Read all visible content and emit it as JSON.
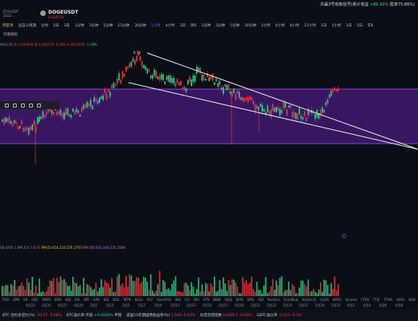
{
  "topbar": {
    "status_text": "共赢3号有新信号(累计收益",
    "gain": "+86.42%",
    "win_rate": "胜率75.86%)"
  },
  "symbol": {
    "small1": "ETHUSDT",
    "small2": "2022...",
    "name": "DOGEUSDT",
    "price": "0.424176",
    "toolbar_left1": "完匠单",
    "toolbar_left2": "设自义周期"
  },
  "timeframes": [
    "分时",
    "1日",
    "3日",
    "1分钟",
    "3分钟",
    "5分钟",
    "15分钟",
    "30分钟",
    "1小时",
    "4小时",
    "1日",
    "周K",
    "1分钟",
    "3分钟",
    "5分钟",
    "30分钟",
    "2小时",
    "6小时",
    "8小时",
    "12小时",
    "1日",
    "3小时",
    "3日",
    "5日",
    "年K"
  ],
  "tabs": [
    "均值指标"
  ],
  "ohlc": {
    "line1a": "4H1139",
    "line1b": "开 0.420008",
    "line1c": "收 0.424176",
    "line1d": "-0.28% 0.0012059",
    "line1e": "-1.18%"
  },
  "price_label": "0.74",
  "ma": {
    "a": "58.4264",
    "b": "1.8M 314.7.8.47",
    "c": "MA(5):414,233,576.2703",
    "d": "MA(10):503,344,532.3584"
  },
  "indicators": [
    "TRIX",
    "DMI",
    "VR",
    "OBV",
    "MWO",
    "EMA",
    "KDJ",
    "RSI",
    "WR",
    "SAR",
    "KDJ",
    "BOC",
    "MTM",
    "BULL",
    "PSY",
    "StochRSI",
    "SMI",
    "CCI",
    "MFI",
    "ATR",
    "BBW",
    "SKDJ",
    "BIAS",
    "DPO",
    "ADI",
    "Position",
    "Fundflow",
    "2[Vert.0]",
    "LGUR",
    "BARS",
    "Volume",
    "FTBS",
    "TTSI",
    "TTMA",
    "AVOL",
    "NUR",
    "AVO"
  ],
  "xaxis": [
    "4月23",
    "4月25",
    "4月27",
    "4月29",
    "5月1",
    "5月3",
    "5月5",
    "5月7",
    "5月9",
    "5月11",
    "5月13",
    "5月15",
    "5月17",
    "5月19",
    "5月21",
    "5月23",
    "5月25",
    "5月27",
    "5月29",
    "5月31",
    "6月2",
    "6月4",
    "6月6",
    "6月8"
  ],
  "bottombar": [
    {
      "label": "BTC 合约多空比(%)",
      "v1": "-42.47",
      "v2": "-0.68%",
      "v1_color": "r",
      "v2_color": "r"
    },
    {
      "label": "BTC溢价率-币安",
      "v1": "+0.0026%",
      "v2": "平稳",
      "v1_color": "g",
      "v2_color": ""
    },
    {
      "label": "美国10年期国债收益率(%)",
      "v1": "1.596",
      "v2": "-0.87%",
      "v1_color": "r",
      "v2_color": "r"
    },
    {
      "label": "标普恐慌指数",
      "v1": "$1886.1",
      "v2": "-0.09%",
      "v1_color": "r",
      "v2_color": "r"
    },
    {
      "label": "GBTC溢价率",
      "v1": "-0.114",
      "v2": "-0.1%",
      "v1_color": "r",
      "v2_color": "r"
    }
  ]
}
